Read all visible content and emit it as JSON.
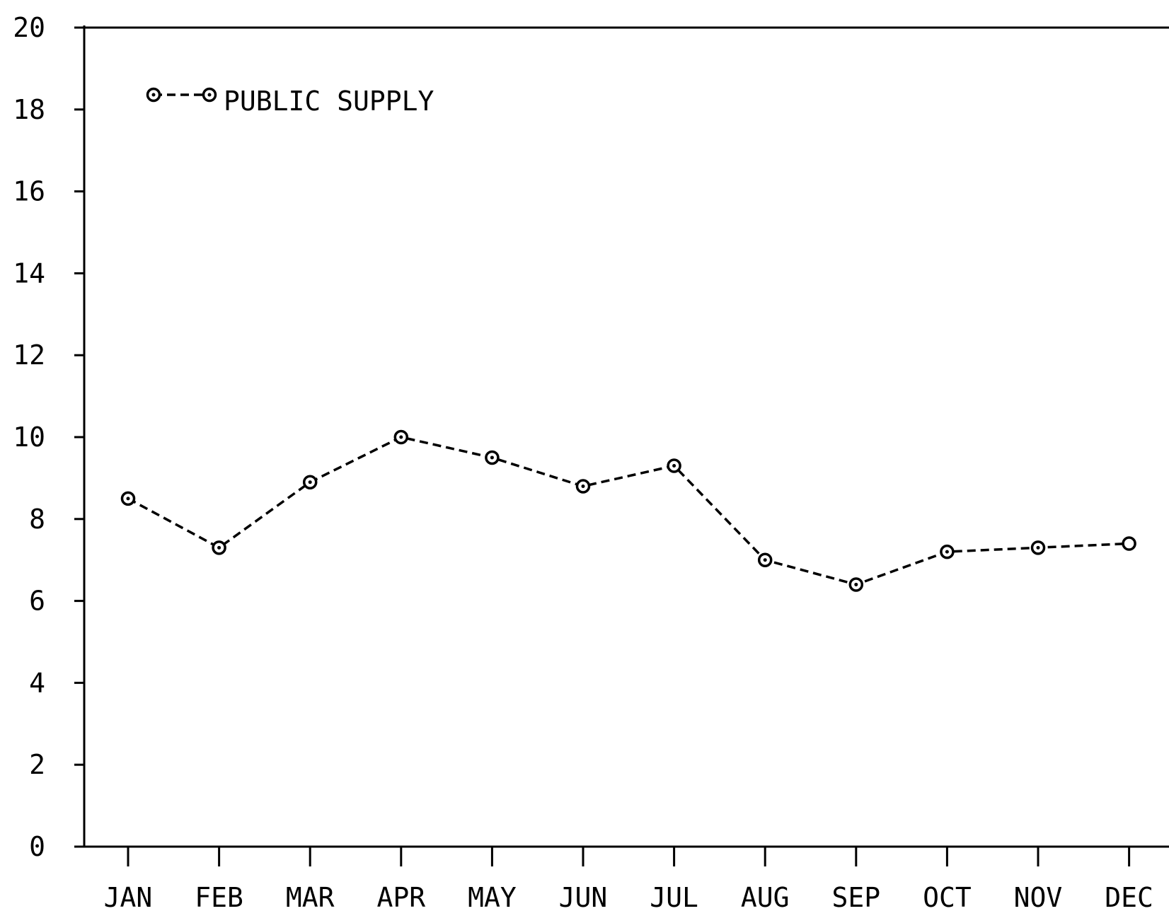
{
  "chart_data": {
    "type": "line",
    "title": "",
    "xlabel": "",
    "ylabel": "",
    "categories": [
      "JAN",
      "FEB",
      "MAR",
      "APR",
      "MAY",
      "JUN",
      "JUL",
      "AUG",
      "SEP",
      "OCT",
      "NOV",
      "DEC"
    ],
    "y_ticks": [
      "0",
      "2",
      "4",
      "6",
      "8",
      "10",
      "12",
      "14",
      "16",
      "18",
      "20"
    ],
    "ylim": [
      0,
      20
    ],
    "grid": false,
    "legend": "top-left",
    "series": [
      {
        "name": "PUBLIC SUPPLY",
        "line_style": "dashed",
        "marker": "circle",
        "color": "#000000",
        "values": [
          8.5,
          7.3,
          8.9,
          10.0,
          9.5,
          8.8,
          9.3,
          7.0,
          6.4,
          7.2,
          7.3,
          7.4
        ]
      }
    ]
  }
}
